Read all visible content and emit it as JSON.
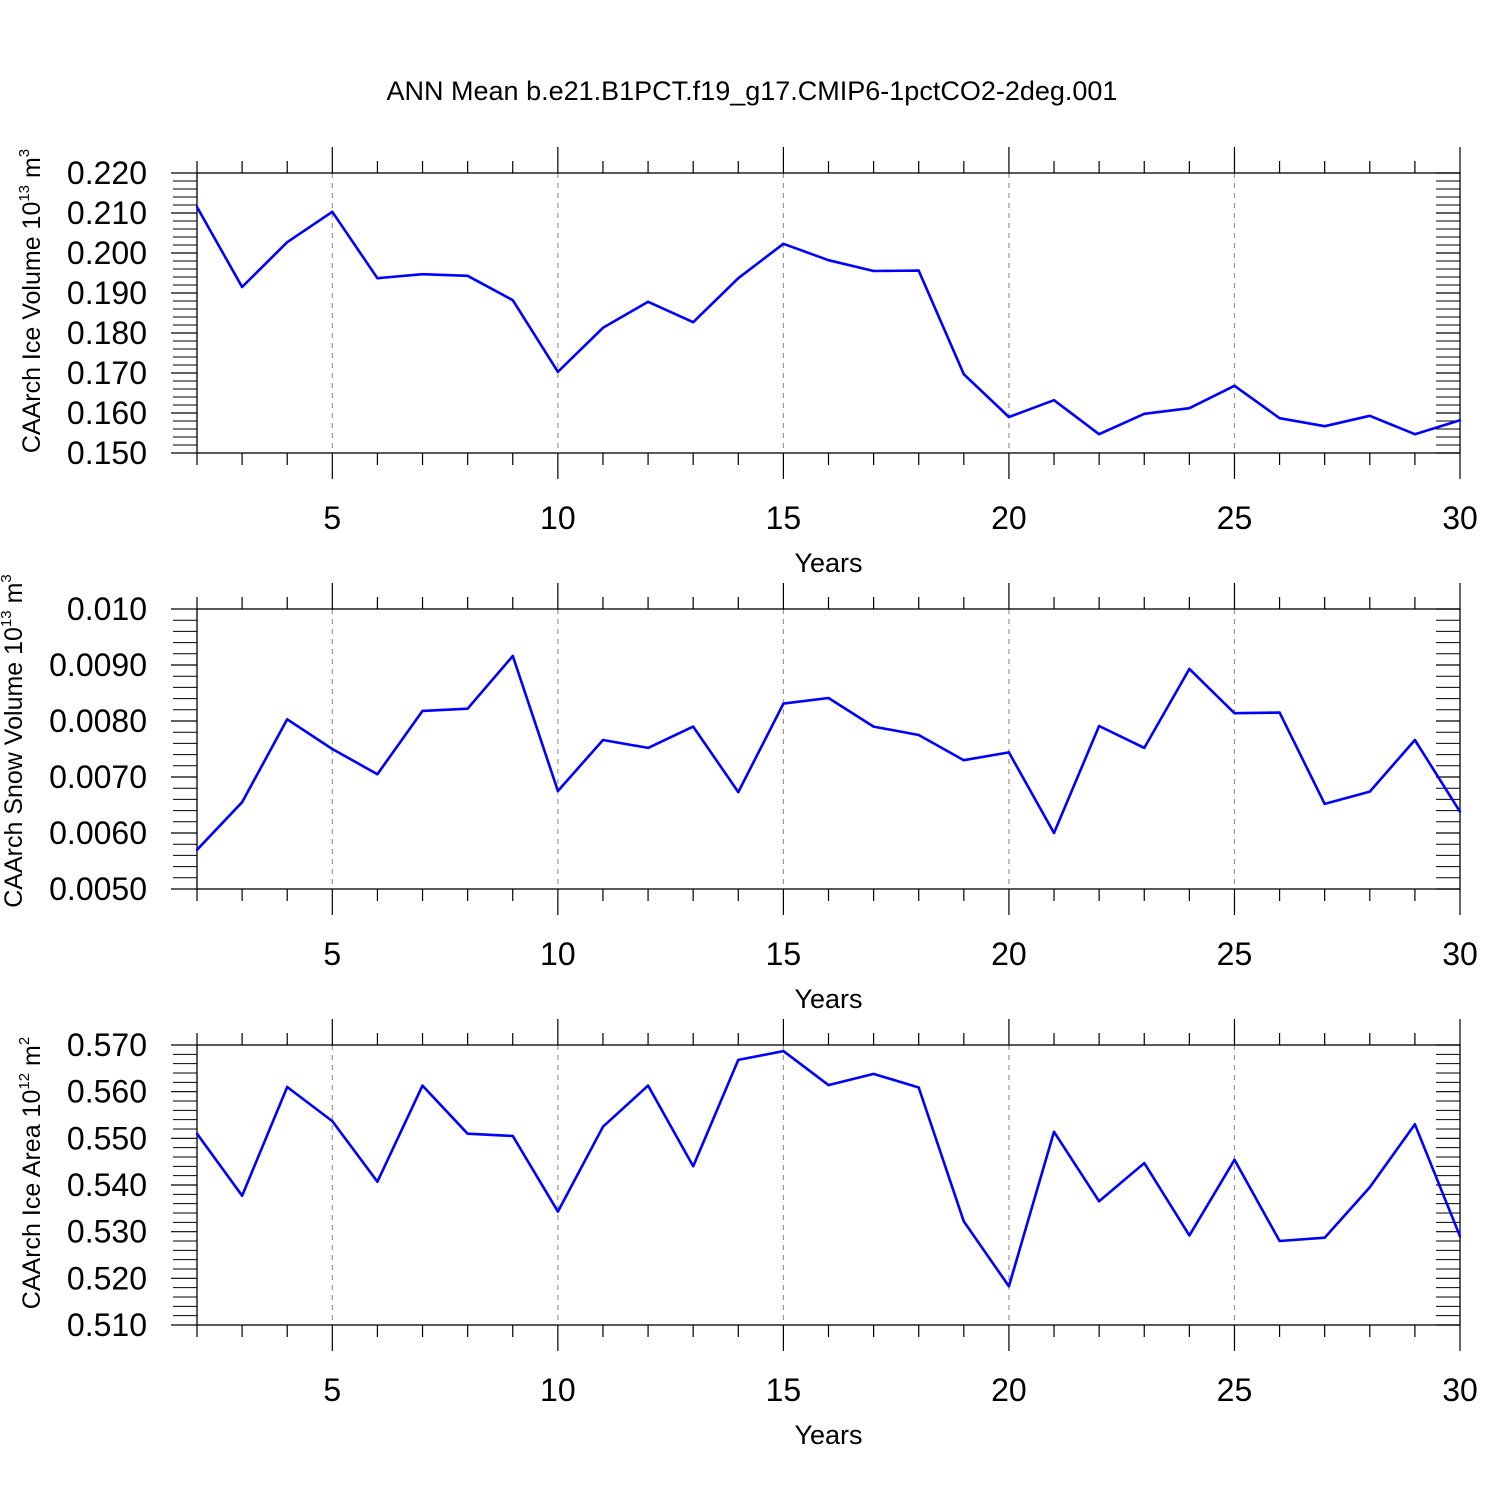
{
  "title": "ANN Mean b.e21.B1PCT.f19_g17.CMIP6-1pctCO2-2deg.001",
  "chart_data": [
    {
      "type": "line",
      "ylabel_main": "CAArch Ice Volume 10",
      "ylabel_exp": "13",
      "ylabel_unit": " m",
      "ylabel_unit_exp": "3",
      "xlabel": "Years",
      "xlim": [
        2,
        30
      ],
      "ylim": [
        0.15,
        0.22
      ],
      "yticks": [
        "0.150",
        "0.160",
        "0.170",
        "0.180",
        "0.190",
        "0.200",
        "0.210",
        "0.220"
      ],
      "xticks": [
        "5",
        "10",
        "15",
        "20",
        "25",
        "30"
      ],
      "grid": "vertical dashed at major x ticks",
      "color": "#0000ff",
      "x": [
        2,
        3,
        4,
        5,
        6,
        7,
        8,
        9,
        10,
        11,
        12,
        13,
        14,
        15,
        16,
        17,
        18,
        19,
        20,
        21,
        22,
        23,
        24,
        25,
        26,
        27,
        28,
        29,
        30
      ],
      "values": [
        0.2115,
        0.1915,
        0.2027,
        0.2103,
        0.1937,
        0.1947,
        0.1943,
        0.1882,
        0.1703,
        0.1813,
        0.1878,
        0.1827,
        0.1937,
        0.2023,
        0.1982,
        0.1955,
        0.1956,
        0.1697,
        0.159,
        0.1632,
        0.1547,
        0.1598,
        0.1612,
        0.1668,
        0.1587,
        0.1567,
        0.1593,
        0.1547,
        0.1582
      ]
    },
    {
      "type": "line",
      "ylabel_main": "CAArch Snow Volume 10",
      "ylabel_exp": "13",
      "ylabel_unit": " m",
      "ylabel_unit_exp": "3",
      "xlabel": "Years",
      "xlim": [
        2,
        30
      ],
      "ylim": [
        0.005,
        0.01
      ],
      "yticks": [
        "0.0050",
        "0.0060",
        "0.0070",
        "0.0080",
        "0.0090",
        "0.010"
      ],
      "xticks": [
        "5",
        "10",
        "15",
        "20",
        "25",
        "30"
      ],
      "grid": "vertical dashed at major x ticks",
      "color": "#0000ff",
      "x": [
        2,
        3,
        4,
        5,
        6,
        7,
        8,
        9,
        10,
        11,
        12,
        13,
        14,
        15,
        16,
        17,
        18,
        19,
        20,
        21,
        22,
        23,
        24,
        25,
        26,
        27,
        28,
        29,
        30
      ],
      "values": [
        0.0057,
        0.00655,
        0.00803,
        0.0075,
        0.00705,
        0.00818,
        0.00822,
        0.00916,
        0.00675,
        0.00766,
        0.00752,
        0.0079,
        0.00673,
        0.00831,
        0.00841,
        0.0079,
        0.00775,
        0.0073,
        0.00744,
        0.006,
        0.00791,
        0.00752,
        0.00893,
        0.00814,
        0.00815,
        0.00652,
        0.00674,
        0.00766,
        0.00638
      ]
    },
    {
      "type": "line",
      "ylabel_main": "CAArch Ice Area 10",
      "ylabel_exp": "12",
      "ylabel_unit": " m",
      "ylabel_unit_exp": "2",
      "xlabel": "Years",
      "xlim": [
        2,
        30
      ],
      "ylim": [
        0.51,
        0.57
      ],
      "yticks": [
        "0.510",
        "0.520",
        "0.530",
        "0.540",
        "0.550",
        "0.560",
        "0.570"
      ],
      "xticks": [
        "5",
        "10",
        "15",
        "20",
        "25",
        "30"
      ],
      "grid": "vertical dashed at major x ticks",
      "color": "#0000ff",
      "x": [
        2,
        3,
        4,
        5,
        6,
        7,
        8,
        9,
        10,
        11,
        12,
        13,
        14,
        15,
        16,
        17,
        18,
        19,
        20,
        21,
        22,
        23,
        24,
        25,
        26,
        27,
        28,
        29,
        30
      ],
      "values": [
        0.551,
        0.5377,
        0.561,
        0.5537,
        0.5407,
        0.5613,
        0.551,
        0.5505,
        0.5343,
        0.5525,
        0.5613,
        0.544,
        0.5668,
        0.5687,
        0.5614,
        0.5638,
        0.5609,
        0.5322,
        0.5183,
        0.5514,
        0.5365,
        0.5447,
        0.5292,
        0.5454,
        0.528,
        0.5287,
        0.5395,
        0.553,
        0.529
      ]
    }
  ]
}
